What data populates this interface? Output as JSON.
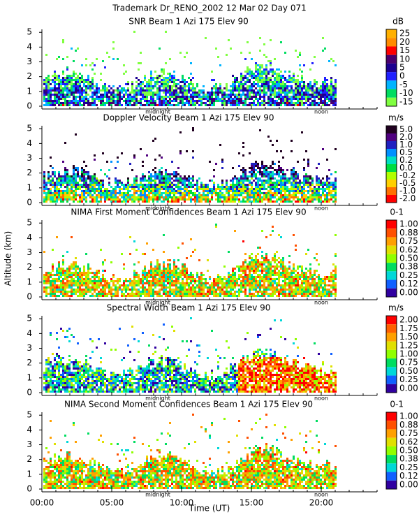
{
  "title": "Trademark Dr_RENO_2002  12 Mar 02 Day 071",
  "ylabel": "Altitude (km)",
  "xlabel": "Time (UT)",
  "chart_data": [
    {
      "type": "heatmap",
      "title": "SNR Beam 1 Azi 175 Elev 90",
      "unit": "dB",
      "xlim": [
        0,
        24
      ],
      "ylim": [
        0,
        5.2
      ],
      "yticks": [
        0,
        1,
        2,
        3,
        4,
        5
      ],
      "annotations": [
        {
          "text": "midnight",
          "x": 8.3
        },
        {
          "text": "noon",
          "x": 20
        }
      ],
      "colorbar": {
        "ticks": [
          25,
          20,
          15,
          10,
          5,
          0,
          -5,
          -10,
          -15
        ],
        "colors": [
          "#ffb000",
          "#ff8c00",
          "#ff0000",
          "#4b006e",
          "#1c0090",
          "#2020ff",
          "#00b4ff",
          "#00dd60",
          "#80ff40"
        ]
      }
    },
    {
      "type": "heatmap",
      "title": "Doppler Velocity Beam 1 Azi 175 Elev 90",
      "unit": "m/s",
      "xlim": [
        0,
        24
      ],
      "ylim": [
        0,
        5.2
      ],
      "yticks": [
        0,
        1,
        2,
        3,
        4,
        5
      ],
      "annotations": [
        {
          "text": "midnight",
          "x": 8.3
        },
        {
          "text": "noon",
          "x": 20
        }
      ],
      "colorbar": {
        "ticks": [
          {
            "value": 5,
            "label": "5.0"
          },
          {
            "value": 2,
            "label": "2.0"
          },
          {
            "value": 1,
            "label": "1.0"
          },
          0.5,
          0.2,
          {
            "value": 0,
            "label": "0.0"
          },
          -0.2,
          -0.5,
          {
            "value": -1,
            "label": "-1.0"
          },
          {
            "value": -2,
            "label": "-2.0"
          }
        ],
        "colors": [
          "#200020",
          "#500080",
          "#2020c0",
          "#0090ff",
          "#00e0c0",
          "#00dd40",
          "#b0ff00",
          "#ffd000",
          "#ff7000",
          "#ff0000"
        ]
      }
    },
    {
      "type": "heatmap",
      "title": "NIMA First Moment Confidences Beam 1 Azi 175 Elev 90",
      "unit": "0-1",
      "xlim": [
        0,
        24
      ],
      "ylim": [
        0,
        5.2
      ],
      "yticks": [
        0,
        1,
        2,
        3,
        4,
        5
      ],
      "annotations": [
        {
          "text": "midnight",
          "x": 8.3
        },
        {
          "text": "noon",
          "x": 20
        }
      ],
      "colorbar": {
        "ticks": [
          {
            "value": 1,
            "label": "1.00"
          },
          {
            "value": 0.88,
            "label": "0.88"
          },
          {
            "value": 0.75,
            "label": "0.75"
          },
          {
            "value": 0.62,
            "label": "0.62"
          },
          {
            "value": 0.5,
            "label": "0.50"
          },
          {
            "value": 0.38,
            "label": "0.38"
          },
          {
            "value": 0.25,
            "label": "0.25"
          },
          {
            "value": 0.12,
            "label": "0.12"
          },
          {
            "value": 0,
            "label": "0.00"
          }
        ],
        "colors": [
          "#ff0000",
          "#ff5000",
          "#ffa000",
          "#e0e000",
          "#90ff00",
          "#00dd60",
          "#00d8d8",
          "#1060ff",
          "#3000a0"
        ]
      }
    },
    {
      "type": "heatmap",
      "title": "Spectral Width Beam 1 Azi 175 Elev 90",
      "unit": "m/s",
      "xlim": [
        0,
        24
      ],
      "ylim": [
        0,
        5.2
      ],
      "yticks": [
        0,
        1,
        2,
        3,
        4,
        5
      ],
      "annotations": [
        {
          "text": "midnight",
          "x": 8.3
        },
        {
          "text": "noon",
          "x": 20
        }
      ],
      "colorbar": {
        "ticks": [
          {
            "value": 2,
            "label": "2.00"
          },
          {
            "value": 1.75,
            "label": "1.75"
          },
          {
            "value": 1.5,
            "label": "1.50"
          },
          {
            "value": 1.25,
            "label": "1.25"
          },
          {
            "value": 1,
            "label": "1.00"
          },
          {
            "value": 0.75,
            "label": "0.75"
          },
          {
            "value": 0.5,
            "label": "0.50"
          },
          {
            "value": 0.25,
            "label": "0.25"
          },
          {
            "value": 0,
            "label": "0.00"
          }
        ],
        "colors": [
          "#ff0000",
          "#ff6000",
          "#ffa000",
          "#e0e000",
          "#90ff00",
          "#00dd60",
          "#00d8d8",
          "#1060ff",
          "#3000a0"
        ]
      }
    },
    {
      "type": "heatmap",
      "title": "NIMA Second Moment Confidences Beam 1 Azi 175 Elev 90",
      "unit": "0-1",
      "xlim": [
        0,
        24
      ],
      "ylim": [
        0,
        5.2
      ],
      "yticks": [
        0,
        1,
        2,
        3,
        4,
        5
      ],
      "xticks": [
        {
          "value": 0,
          "label": "00:00"
        },
        {
          "value": 5,
          "label": "05:00"
        },
        {
          "value": 10,
          "label": "10:00"
        },
        {
          "value": 15,
          "label": "15:00"
        },
        {
          "value": 20,
          "label": "20:00"
        }
      ],
      "annotations": [
        {
          "text": "midnight",
          "x": 8.3
        },
        {
          "text": "noon",
          "x": 20
        }
      ],
      "colorbar": {
        "ticks": [
          {
            "value": 1,
            "label": "1.00"
          },
          {
            "value": 0.88,
            "label": "0.88"
          },
          {
            "value": 0.75,
            "label": "0.75"
          },
          {
            "value": 0.62,
            "label": "0.62"
          },
          {
            "value": 0.5,
            "label": "0.50"
          },
          {
            "value": 0.38,
            "label": "0.38"
          },
          {
            "value": 0.25,
            "label": "0.25"
          },
          {
            "value": 0.12,
            "label": "0.12"
          },
          {
            "value": 0,
            "label": "0.00"
          }
        ],
        "colors": [
          "#ff0000",
          "#ff5000",
          "#ffa000",
          "#e0e000",
          "#90ff00",
          "#00dd60",
          "#00d8d8",
          "#1060ff",
          "#3000a0"
        ]
      }
    }
  ]
}
